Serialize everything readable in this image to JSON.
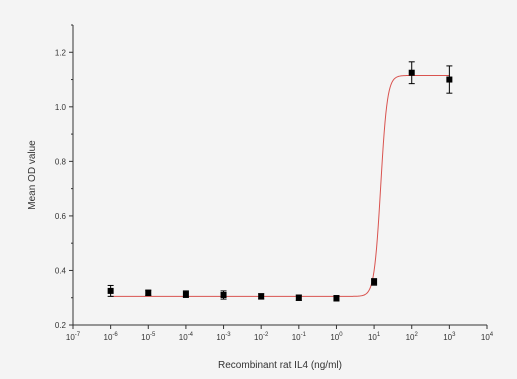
{
  "chart_data": {
    "type": "scatter",
    "title": "",
    "xlabel": "Recombinant rat IL4 (ng/ml)",
    "ylabel": "Mean OD value",
    "x_scale": "log",
    "xlim": [
      1e-07,
      10000
    ],
    "ylim": [
      0.2,
      1.3
    ],
    "x_tick_labels": [
      {
        "base": "10",
        "exp": "-7"
      },
      {
        "base": "10",
        "exp": "-6"
      },
      {
        "base": "10",
        "exp": "-5"
      },
      {
        "base": "10",
        "exp": "-4"
      },
      {
        "base": "10",
        "exp": "-3"
      },
      {
        "base": "10",
        "exp": "-2"
      },
      {
        "base": "10",
        "exp": "-1"
      },
      {
        "base": "10",
        "exp": "0"
      },
      {
        "base": "10",
        "exp": "1"
      },
      {
        "base": "10",
        "exp": "2"
      },
      {
        "base": "10",
        "exp": "3"
      },
      {
        "base": "10",
        "exp": "4"
      }
    ],
    "y_ticks": [
      "0.2",
      "0.4",
      "0.6",
      "0.8",
      "1.0",
      "1.2"
    ],
    "grid": false,
    "series": [
      {
        "x": [
          1e-06,
          1e-05,
          0.0001,
          0.001,
          0.01,
          0.1,
          1,
          10,
          100,
          1000
        ],
        "y": [
          0.325,
          0.318,
          0.313,
          0.31,
          0.305,
          0.3,
          0.298,
          0.358,
          1.125,
          1.1
        ],
        "error": [
          0.02,
          0.01,
          0.012,
          0.015,
          0.01,
          0.01,
          0.01,
          0.012,
          0.04,
          0.05
        ],
        "color": "#000000"
      }
    ],
    "fit": {
      "model": "four-parameter logistic",
      "bottom": 0.305,
      "top": 1.115,
      "ec50": 15,
      "hill": 5,
      "color": "#d9534f"
    }
  }
}
